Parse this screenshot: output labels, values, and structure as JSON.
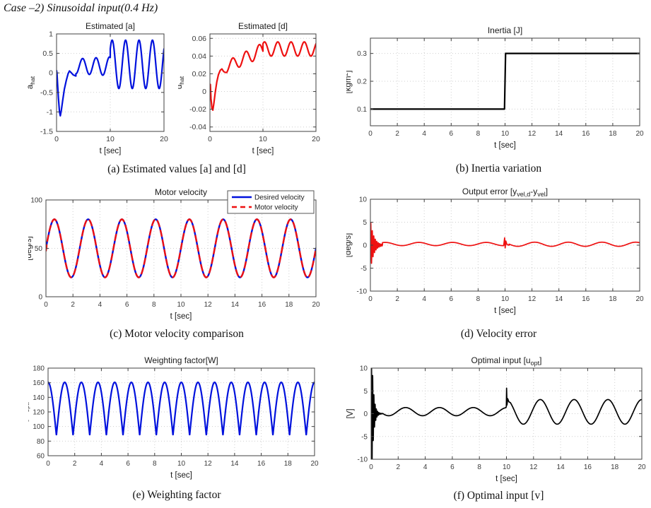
{
  "header": {
    "title": "Case –2) Sinusoidal input(0.4 Hz)"
  },
  "captions": [
    "(a) Estimated values [a] and [d]",
    "(b) Inertia variation",
    "(c) Motor velocity comparison",
    "(d) Velocity error",
    "(e) Weighting factor",
    "(f) Optimal input [v]"
  ],
  "colors": {
    "blue": "#0011dd",
    "red": "#ee1111",
    "black": "#000000",
    "grid": "#cfcfcf",
    "axis": "#404040",
    "tick_text": "#3b3b3b"
  },
  "chart_data": [
    {
      "id": "estimated-a",
      "type": "line",
      "title_parts": [
        {
          "t": "Estimated [a]"
        }
      ],
      "xlabel": "t [sec]",
      "ylabel_parts": [
        {
          "t": "a"
        },
        {
          "t": "hat",
          "sub": true
        }
      ],
      "xlim": [
        0,
        20
      ],
      "ylim": [
        -1.5,
        1
      ],
      "xtick_vals": [
        0,
        10,
        20
      ],
      "xtick_labels": [
        "0",
        "10",
        "20"
      ],
      "ytick_vals": [
        -1.5,
        -1,
        -0.5,
        0,
        0.5,
        1
      ],
      "ytick_labels": [
        "-1.5",
        "-1",
        "-0.5",
        "0",
        "0.5",
        "1"
      ],
      "grid": true,
      "series": [
        {
          "name": "a_hat",
          "color": "#0011dd",
          "width": 2.2,
          "segments": [
            {
              "type": "pts",
              "pts": [
                [
                  0,
                  0.06
                ],
                [
                  0.08,
                  0.0
                ],
                [
                  0.2,
                  -0.3
                ],
                [
                  0.35,
                  -0.65
                ],
                [
                  0.55,
                  -1.0
                ],
                [
                  0.7,
                  -1.1
                ],
                [
                  0.9,
                  -0.95
                ],
                [
                  1.15,
                  -0.7
                ],
                [
                  1.45,
                  -0.42
                ],
                [
                  1.8,
                  -0.2
                ],
                [
                  2.15,
                  -0.02
                ],
                [
                  2.4,
                  0.05
                ],
                [
                  2.7,
                  0.01
                ],
                [
                  3.1,
                  -0.05
                ],
                [
                  3.6,
                  -0.08
                ]
              ]
            },
            {
              "type": "sin",
              "t0": 3.6,
              "t1": 10,
              "mean": 0.17,
              "amp": 0.19,
              "amp_end": 0.24,
              "period": 2.5,
              "phase": 1.948
            },
            {
              "type": "sin",
              "t0": 10,
              "t1": 20,
              "mean": 0.22,
              "amp": 0.62,
              "period": 2.5,
              "phase": 0.691
            }
          ]
        }
      ]
    },
    {
      "id": "estimated-d",
      "type": "line",
      "title_parts": [
        {
          "t": "Estimated [d]"
        }
      ],
      "xlabel": "t [sec]",
      "ylabel_parts": [
        {
          "t": "d"
        },
        {
          "t": "hat",
          "sub": true
        }
      ],
      "xlim": [
        0,
        20
      ],
      "ylim": [
        -0.045,
        0.065
      ],
      "xtick_vals": [
        0,
        10,
        20
      ],
      "xtick_labels": [
        "0",
        "10",
        "20"
      ],
      "ytick_vals": [
        -0.04,
        -0.02,
        0,
        0.02,
        0.04,
        0.06
      ],
      "ytick_labels": [
        "-0.04",
        "-0.02",
        "0",
        "0.02",
        "0.04",
        "0.06"
      ],
      "grid": true,
      "series": [
        {
          "name": "d_hat",
          "color": "#ee1111",
          "width": 2.2,
          "segments": [
            {
              "type": "pts",
              "pts": [
                [
                  0,
                  0.005
                ],
                [
                  0.08,
                  0.008
                ],
                [
                  0.2,
                  -0.008
                ],
                [
                  0.38,
                  -0.019
                ],
                [
                  0.55,
                  -0.021
                ],
                [
                  0.75,
                  -0.013
                ],
                [
                  1.0,
                  -0.001
                ],
                [
                  1.3,
                  0.011
                ],
                [
                  1.6,
                  0.019
                ],
                [
                  1.95,
                  0.024
                ],
                [
                  2.25,
                  0.0255
                ],
                [
                  2.6,
                  0.0225
                ],
                [
                  2.9,
                  0.0215
                ],
                [
                  3.2,
                  0.0215
                ]
              ]
            },
            {
              "type": "sin",
              "t0": 3.2,
              "t1": 10,
              "mean": 0.028,
              "mean_end": 0.047,
              "amp": 0.0065,
              "amp_end": 0.008,
              "period": 2.5,
              "phase": 3.33
            },
            {
              "type": "sin",
              "t0": 10,
              "t1": 20,
              "mean": 0.048,
              "amp": 0.008,
              "period": 2.5,
              "phase": 0.817
            }
          ]
        }
      ]
    },
    {
      "id": "inertia",
      "type": "line",
      "title_parts": [
        {
          "t": "Inertia [J]"
        }
      ],
      "xlabel": "t [sec]",
      "ylabel_parts": [
        {
          "t": "[kgm"
        },
        {
          "t": "2",
          "sup": true
        },
        {
          "t": "]"
        }
      ],
      "xlim": [
        0,
        20
      ],
      "ylim": [
        0.04,
        0.355
      ],
      "xtick_vals": [
        0,
        2,
        4,
        6,
        8,
        10,
        12,
        14,
        16,
        18,
        20
      ],
      "xtick_labels": [
        "0",
        "2",
        "4",
        "6",
        "8",
        "10",
        "12",
        "14",
        "16",
        "18",
        "20"
      ],
      "ytick_vals": [
        0.1,
        0.2,
        0.3
      ],
      "ytick_labels": [
        "0.1",
        "0.2",
        "0.3"
      ],
      "grid": true,
      "series": [
        {
          "name": "inertia_J",
          "color": "#000000",
          "width": 2.2,
          "segments": [
            {
              "type": "pts",
              "pts": [
                [
                  0,
                  0.1
                ],
                [
                  9.96,
                  0.1
                ],
                [
                  10.04,
                  0.3
                ],
                [
                  20,
                  0.3
                ]
              ]
            }
          ]
        }
      ]
    },
    {
      "id": "motor-velocity",
      "type": "line",
      "title_parts": [
        {
          "t": "Motor velocity"
        }
      ],
      "xlabel": "t [sec]",
      "ylabel_parts": [
        {
          "t": "[deg/s]"
        }
      ],
      "xlim": [
        0,
        20
      ],
      "ylim": [
        0,
        100
      ],
      "xtick_vals": [
        0,
        2,
        4,
        6,
        8,
        10,
        12,
        14,
        16,
        18,
        20
      ],
      "xtick_labels": [
        "0",
        "2",
        "4",
        "6",
        "8",
        "10",
        "12",
        "14",
        "16",
        "18",
        "20"
      ],
      "ytick_vals": [
        0,
        50,
        100
      ],
      "ytick_labels": [
        "0",
        "50",
        "100"
      ],
      "grid": true,
      "legend": {
        "entries": [
          {
            "label": "Desired velocity",
            "color": "#0011dd",
            "dash": null,
            "width": 2.4
          },
          {
            "label": "Motor velocity",
            "color": "#ee1111",
            "dash": "7 5",
            "width": 2.4
          }
        ]
      },
      "series": [
        {
          "name": "desired_velocity",
          "color": "#0011dd",
          "width": 2.4,
          "segments": [
            {
              "type": "sin",
              "t0": 0,
              "t1": 20,
              "mean": 50,
              "amp": 30,
              "period": 2.5,
              "phase": 0
            }
          ]
        },
        {
          "name": "motor_velocity",
          "color": "#ee1111",
          "width": 2.4,
          "dash": "8 6",
          "segments": [
            {
              "type": "pts",
              "pts": [
                [
                  0,
                  47.5
                ],
                [
                  0.04,
                  50.5
                ]
              ]
            },
            {
              "type": "sin",
              "t0": 0.06,
              "t1": 20,
              "mean": 50,
              "amp": 30,
              "period": 2.5,
              "phase": 0
            }
          ]
        }
      ]
    },
    {
      "id": "output-error",
      "type": "line",
      "title_parts": [
        {
          "t": "Output error [y"
        },
        {
          "t": "vel,d",
          "sub": true
        },
        {
          "t": "-y"
        },
        {
          "t": "vel",
          "sub": true
        },
        {
          "t": "]"
        }
      ],
      "xlabel": "t [sec]",
      "ylabel_parts": [
        {
          "t": "[deg/s]"
        }
      ],
      "xlim": [
        0,
        20
      ],
      "ylim": [
        -10,
        10
      ],
      "xtick_vals": [
        0,
        2,
        4,
        6,
        8,
        10,
        12,
        14,
        16,
        18,
        20
      ],
      "xtick_labels": [
        "0",
        "2",
        "4",
        "6",
        "8",
        "10",
        "12",
        "14",
        "16",
        "18",
        "20"
      ],
      "ytick_vals": [
        -10,
        -5,
        0,
        5,
        10
      ],
      "ytick_labels": [
        "-10",
        "-5",
        "0",
        "5",
        "10"
      ],
      "grid": true,
      "series": [
        {
          "name": "velocity_error",
          "color": "#ee1111",
          "width": 1.7,
          "segments": [
            {
              "type": "decay_sin",
              "t0": 0,
              "t1": 0.9,
              "amp": 5.5,
              "tau": 0.25,
              "freq": 9,
              "clip": 10,
              "dt": 0.003
            },
            {
              "type": "sin",
              "t0": 0.9,
              "t1": 9.9,
              "mean": 0.25,
              "amp": 0.35,
              "period": 2.5,
              "phase": 5.089
            },
            {
              "type": "pts",
              "pts": [
                [
                  9.9,
                  -0.1
                ],
                [
                  9.97,
                  1.6
                ],
                [
                  10.01,
                  -0.6
                ],
                [
                  10.06,
                  0.9
                ],
                [
                  10.15,
                  0.1
                ],
                [
                  10.3,
                  0.0
                ]
              ]
            },
            {
              "type": "sin",
              "t0": 10.3,
              "t1": 20,
              "mean": 0.2,
              "amp": 0.45,
              "period": 2.5,
              "phase": 2.325
            }
          ]
        }
      ]
    },
    {
      "id": "weighting-factor",
      "type": "line",
      "title_parts": [
        {
          "t": "Weighting factor[W]"
        }
      ],
      "xlabel": "t [sec]",
      "ylabel_parts": [
        {
          "t": "[W"
        },
        {
          "t": "opt",
          "sub": true
        },
        {
          "t": "]"
        }
      ],
      "xlim": [
        0,
        20
      ],
      "ylim": [
        60,
        180
      ],
      "xtick_vals": [
        0,
        2,
        4,
        6,
        8,
        10,
        12,
        14,
        16,
        18,
        20
      ],
      "xtick_labels": [
        "0",
        "2",
        "4",
        "6",
        "8",
        "10",
        "12",
        "14",
        "16",
        "18",
        "20"
      ],
      "ytick_vals": [
        60,
        80,
        100,
        120,
        140,
        160,
        180
      ],
      "ytick_labels": [
        "60",
        "80",
        "100",
        "120",
        "140",
        "160",
        "180"
      ],
      "grid": true,
      "series": [
        {
          "name": "W_opt",
          "color": "#0011dd",
          "width": 2.2,
          "segments": [
            {
              "type": "abs_cos",
              "t0": 0,
              "t1": 20,
              "base": 88,
              "amp": 72.5,
              "freq": 0.4,
              "dt": 0.01
            }
          ]
        }
      ]
    },
    {
      "id": "optimal-input",
      "type": "line",
      "title_parts": [
        {
          "t": "Optimal input [u"
        },
        {
          "t": "opt",
          "sub": true
        },
        {
          "t": "]"
        }
      ],
      "xlabel": "t [sec]",
      "ylabel_parts": [
        {
          "t": "[V]"
        }
      ],
      "xlim": [
        0,
        20
      ],
      "ylim": [
        -10,
        10
      ],
      "xtick_vals": [
        0,
        2,
        4,
        6,
        8,
        10,
        12,
        14,
        16,
        18,
        20
      ],
      "xtick_labels": [
        "0",
        "2",
        "4",
        "6",
        "8",
        "10",
        "12",
        "14",
        "16",
        "18",
        "20"
      ],
      "ytick_vals": [
        -10,
        -5,
        0,
        5,
        10
      ],
      "ytick_labels": [
        "-10",
        "-5",
        "0",
        "5",
        "10"
      ],
      "grid": true,
      "series": [
        {
          "name": "u_opt",
          "color": "#000000",
          "width": 1.7,
          "segments": [
            {
              "type": "decay_sin",
              "t0": 0,
              "t1": 0.85,
              "amp": 20,
              "tau": 0.13,
              "freq": 11,
              "clip": 10,
              "dt": 0.003
            },
            {
              "type": "sin",
              "t0": 0.85,
              "t1": 9.95,
              "mean": 0.45,
              "amp": 0.9,
              "period": 2.5,
              "phase": 1.445
            },
            {
              "type": "pts",
              "pts": [
                [
                  9.95,
                  1.35
                ],
                [
                  9.99,
                  1.5
                ],
                [
                  10.01,
                  5.6
                ],
                [
                  10.04,
                  1.9
                ],
                [
                  10.09,
                  3.3
                ],
                [
                  10.18,
                  2.6
                ],
                [
                  10.3,
                  2.4
                ]
              ]
            },
            {
              "type": "sin",
              "t0": 10.3,
              "t1": 20,
              "mean": 0.4,
              "amp": 2.7,
              "period": 2.5,
              "phase": 1.571
            }
          ]
        }
      ]
    }
  ]
}
